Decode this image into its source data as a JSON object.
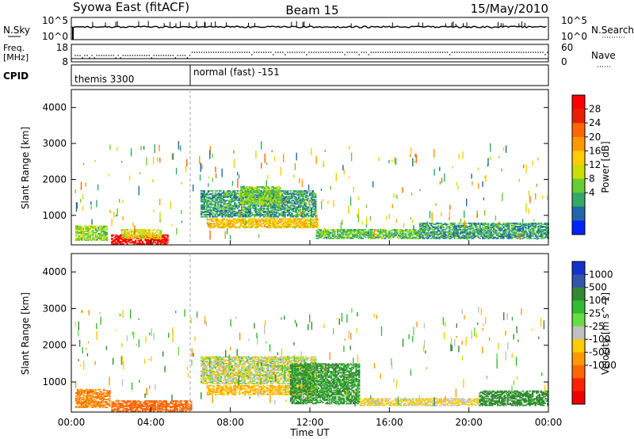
{
  "header": {
    "station": "Syowa East (fitACF)",
    "beam": "Beam 15",
    "date": "15/May/2010"
  },
  "panels": {
    "nsky": {
      "label": "N.Sky",
      "ticks_left": [
        "10^5",
        "10^0"
      ],
      "ticks_right": [
        "10^5",
        "10^0"
      ],
      "right_label": "N.Search"
    },
    "freq": {
      "label_line1": "Freq.",
      "label_line2": "[MHz]",
      "ticks_left": [
        "18",
        "8"
      ],
      "ticks_right": [
        "60",
        "0"
      ],
      "right_label": "Nave"
    },
    "cpid": {
      "label": "CPID",
      "segments": [
        "themis 3300",
        "normal (fast) -151"
      ]
    }
  },
  "axes": {
    "y_label": "Slant Range [km]",
    "x_label": "Time UT",
    "y_ticks": [
      "1000",
      "2000",
      "3000",
      "4000"
    ],
    "x_ticks": [
      "00:00",
      "04:00",
      "08:00",
      "12:00",
      "16:00",
      "20:00",
      "00:00"
    ]
  },
  "colorbars": {
    "power": {
      "label": "Power [dB]",
      "ticks": [
        "28",
        "24",
        "20",
        "16",
        "12",
        "8",
        "4"
      ],
      "colors": [
        "#ff0000",
        "#e82000",
        "#ff6600",
        "#ff9900",
        "#ffcc00",
        "#ccdd00",
        "#66cc33",
        "#33aa66",
        "#2266aa",
        "#0022ff"
      ]
    },
    "velocity": {
      "label": "Velocity [m s^-1]",
      "ticks": [
        "1000",
        "500",
        "100",
        "25",
        "-25",
        "-100",
        "-500",
        "-1000"
      ],
      "colors": [
        "#1133cc",
        "#3355aa",
        "#338833",
        "#33bb33",
        "#66dd44",
        "#c0c0c0",
        "#ffcc00",
        "#ff9900",
        "#ff6600",
        "#ff2200",
        "#ee0000"
      ]
    }
  },
  "chart_data": [
    {
      "type": "heatmap",
      "title": "Power",
      "xlabel": "Time UT",
      "ylabel": "Slant Range [km]",
      "xlim": [
        0,
        24
      ],
      "ylim": [
        180,
        4500
      ],
      "colorbar_label": "Power [dB]",
      "clim": [
        0,
        32
      ],
      "regions": [
        {
          "t": [
            0.2,
            1.8
          ],
          "r": [
            300,
            700
          ],
          "value": 12
        },
        {
          "t": [
            2.0,
            4.8
          ],
          "r": [
            200,
            450
          ],
          "value": 30
        },
        {
          "t": [
            2.5,
            4.5
          ],
          "r": [
            350,
            600
          ],
          "value": 16
        },
        {
          "t": [
            6.8,
            12.4
          ],
          "r": [
            650,
            900
          ],
          "value": 18
        },
        {
          "t": [
            6.5,
            12.3
          ],
          "r": [
            950,
            1700
          ],
          "value": 8
        },
        {
          "t": [
            8.5,
            10.5
          ],
          "r": [
            1300,
            1800
          ],
          "value": 12
        },
        {
          "t": [
            12.3,
            17.5
          ],
          "r": [
            350,
            600
          ],
          "value": 10
        },
        {
          "t": [
            17.5,
            24.0
          ],
          "r": [
            350,
            800
          ],
          "value": 8
        }
      ]
    },
    {
      "type": "heatmap",
      "title": "Velocity",
      "xlabel": "Time UT",
      "ylabel": "Slant Range [km]",
      "xlim": [
        0,
        24
      ],
      "ylim": [
        180,
        4500
      ],
      "colorbar_label": "Velocity [m s^-1]",
      "clim": [
        -1000,
        1000
      ],
      "regions": [
        {
          "t": [
            0.2,
            1.9
          ],
          "r": [
            300,
            800
          ],
          "value": -300
        },
        {
          "t": [
            2.0,
            6.0
          ],
          "r": [
            200,
            500
          ],
          "value": -400
        },
        {
          "t": [
            6.5,
            12.3
          ],
          "r": [
            950,
            1700
          ],
          "value": 0
        },
        {
          "t": [
            6.8,
            12.3
          ],
          "r": [
            650,
            900
          ],
          "value": -80
        },
        {
          "t": [
            11.0,
            14.5
          ],
          "r": [
            400,
            1500
          ],
          "value": 120
        },
        {
          "t": [
            14.5,
            20.5
          ],
          "r": [
            350,
            550
          ],
          "value": -30
        },
        {
          "t": [
            20.5,
            24.0
          ],
          "r": [
            350,
            750
          ],
          "value": 150
        }
      ]
    }
  ]
}
